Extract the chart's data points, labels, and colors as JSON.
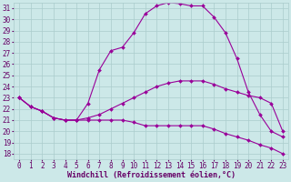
{
  "xlabel": "Windchill (Refroidissement éolien,°C)",
  "ylabel": "",
  "background_color": "#cce8e8",
  "grid_color": "#aacccc",
  "line_color": "#990099",
  "text_color": "#660066",
  "xlim": [
    -0.5,
    23.5
  ],
  "ylim": [
    17.5,
    31.5
  ],
  "xticks": [
    0,
    1,
    2,
    3,
    4,
    5,
    6,
    7,
    8,
    9,
    10,
    11,
    12,
    13,
    14,
    15,
    16,
    17,
    18,
    19,
    20,
    21,
    22,
    23
  ],
  "yticks": [
    18,
    19,
    20,
    21,
    22,
    23,
    24,
    25,
    26,
    27,
    28,
    29,
    30,
    31
  ],
  "series": [
    [
      23.0,
      22.2,
      21.8,
      21.2,
      21.0,
      21.0,
      22.5,
      25.5,
      27.2,
      27.5,
      28.8,
      30.5,
      31.2,
      31.5,
      31.4,
      31.2,
      31.2,
      30.2,
      28.8,
      26.5,
      23.5,
      21.5,
      20.0,
      19.5
    ],
    [
      23.0,
      22.2,
      21.8,
      21.2,
      21.0,
      21.0,
      21.2,
      21.5,
      22.0,
      22.5,
      23.0,
      23.5,
      24.0,
      24.3,
      24.5,
      24.5,
      24.5,
      24.2,
      23.8,
      23.5,
      23.2,
      23.0,
      22.5,
      20.0
    ],
    [
      23.0,
      22.2,
      21.8,
      21.2,
      21.0,
      21.0,
      21.0,
      21.0,
      21.0,
      21.0,
      20.8,
      20.5,
      20.5,
      20.5,
      20.5,
      20.5,
      20.5,
      20.2,
      19.8,
      19.5,
      19.2,
      18.8,
      18.5,
      18.0
    ]
  ],
  "marker": "D",
  "marker_size": 2.0,
  "linewidth": 0.8,
  "xlabel_fontsize": 6.0,
  "tick_fontsize": 5.5
}
